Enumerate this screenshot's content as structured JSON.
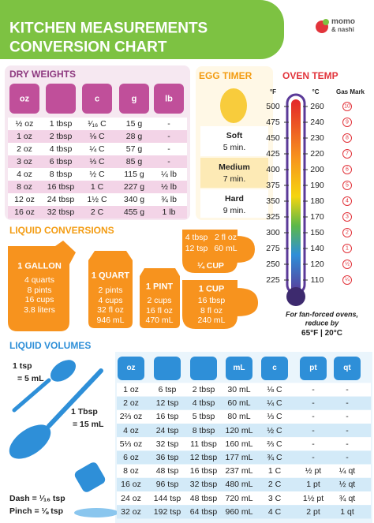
{
  "header": {
    "title_line1": "KITCHEN MEASUREMENTS",
    "title_line2": "CONVERSION CHART",
    "brand_line1": "momo",
    "brand_line2": "& nashi"
  },
  "dry_weights": {
    "title": "DRY WEIGHTS",
    "header": [
      "oz",
      "c",
      "g",
      "lb"
    ],
    "rows": [
      [
        "½ oz",
        "1 tbsp",
        "¹⁄₁₆ C",
        "15 g",
        "-"
      ],
      [
        "1 oz",
        "2 tbsp",
        "⅛ C",
        "28 g",
        "-"
      ],
      [
        "2 oz",
        "4 tbsp",
        "¼ C",
        "57 g",
        "-"
      ],
      [
        "3 oz",
        "6 tbsp",
        "⅓ C",
        "85 g",
        "-"
      ],
      [
        "4 oz",
        "8 tbsp",
        "½ C",
        "115 g",
        "¼ lb"
      ],
      [
        "8 oz",
        "16 tbsp",
        "1 C",
        "227 g",
        "½ lb"
      ],
      [
        "12 oz",
        "24 tbsp",
        "1½ C",
        "340 g",
        "¾ lb"
      ],
      [
        "16 oz",
        "32 tbsp",
        "2 C",
        "455 g",
        "1 lb"
      ]
    ]
  },
  "egg_timer": {
    "title": "EGG TIMER",
    "items": [
      {
        "label": "Soft",
        "time": "5 min."
      },
      {
        "label": "Medium",
        "time": "7 min."
      },
      {
        "label": "Hard",
        "time": "9 min."
      }
    ]
  },
  "oven_temp": {
    "title": "OVEN TEMP",
    "header": [
      "°F",
      "°C",
      "Gas Mark"
    ],
    "rows": [
      [
        "500",
        "260",
        "10"
      ],
      [
        "475",
        "240",
        "9"
      ],
      [
        "450",
        "230",
        "8"
      ],
      [
        "425",
        "220",
        "7"
      ],
      [
        "400",
        "200",
        "6"
      ],
      [
        "375",
        "190",
        "5"
      ],
      [
        "350",
        "180",
        "4"
      ],
      [
        "325",
        "170",
        "3"
      ],
      [
        "300",
        "150",
        "2"
      ],
      [
        "275",
        "140",
        "1"
      ],
      [
        "250",
        "120",
        "½"
      ],
      [
        "225",
        "110",
        "¼"
      ]
    ],
    "note_line1": "For fan-forced ovens,",
    "note_line2": "reduce by",
    "note_line3": "65°F | 20°C"
  },
  "liquid_conversions": {
    "title": "LIQUID CONVERSIONS",
    "gallon": {
      "title": "1 GALLON",
      "lines": [
        "4 quarts",
        "8 pints",
        "16 cups",
        "3.8 liters"
      ]
    },
    "quart": {
      "title": "1 QUART",
      "lines": [
        "2 pints",
        "4 cups",
        "32 fl oz",
        "946 mL"
      ]
    },
    "pint": {
      "title": "1 PINT",
      "lines": [
        "2 cups",
        "16 fl oz",
        "470 mL"
      ]
    },
    "cup": {
      "title": "1 CUP",
      "lines": [
        "16 tbsp",
        "8 fl oz",
        "240 mL"
      ]
    },
    "quarter_cup": {
      "title": "¼ CUP",
      "lines": [
        "4 tbsp",
        "2 fl oz",
        "12 tsp",
        "60 mL"
      ]
    }
  },
  "liquid_volumes": {
    "title": "LIQUID VOLUMES",
    "tsp": "1 tsp",
    "tsp_ml": "= 5 mL",
    "tbsp": "1 Tbsp",
    "tbsp_ml": "= 15 mL",
    "dash": "Dash = ¹⁄₁₆ tsp",
    "pinch": "Pinch = ⅛ tsp",
    "header": [
      "oz",
      "mL",
      "c",
      "pt",
      "qt"
    ],
    "rows": [
      [
        "1 oz",
        "6 tsp",
        "2 tbsp",
        "30 mL",
        "⅛ C",
        "-",
        "-"
      ],
      [
        "2 oz",
        "12 tsp",
        "4 tbsp",
        "60 mL",
        "¼ C",
        "-",
        "-"
      ],
      [
        "2⅔ oz",
        "16 tsp",
        "5 tbsp",
        "80 mL",
        "⅓ C",
        "-",
        "-"
      ],
      [
        "4 oz",
        "24 tsp",
        "8 tbsp",
        "120 mL",
        "½ C",
        "-",
        "-"
      ],
      [
        "5⅓ oz",
        "32 tsp",
        "11 tbsp",
        "160 mL",
        "⅔ C",
        "-",
        "-"
      ],
      [
        "6 oz",
        "36 tsp",
        "12 tbsp",
        "177 mL",
        "¾ C",
        "-",
        "-"
      ],
      [
        "8 oz",
        "48 tsp",
        "16 tbsp",
        "237 mL",
        "1 C",
        "½ pt",
        "¼ qt"
      ],
      [
        "16 oz",
        "96 tsp",
        "32 tbsp",
        "480 mL",
        "2 C",
        "1 pt",
        "½ qt"
      ],
      [
        "24 oz",
        "144 tsp",
        "48 tbsp",
        "720 mL",
        "3 C",
        "1½ pt",
        "¾ qt"
      ],
      [
        "32 oz",
        "192 tsp",
        "64 tbsp",
        "960 mL",
        "4 C",
        "2 pt",
        "1 qt"
      ]
    ]
  }
}
